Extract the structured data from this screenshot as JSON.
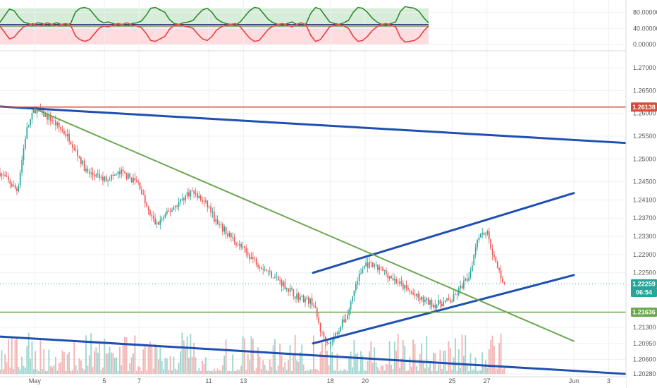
{
  "chart_data": [
    {
      "type": "line",
      "panel": "oscillator",
      "title": "",
      "ylim": [
        -5,
        100
      ],
      "y_ticks": [
        {
          "label": "80.00000",
          "value": 80
        },
        {
          "label": "40.00000",
          "value": 40
        },
        {
          "label": "0.00000",
          "value": 0
        }
      ],
      "series": [
        {
          "color": "#2e8b2e",
          "role": "upper",
          "values": [
            55,
            72,
            88,
            84,
            68,
            56,
            52,
            48,
            54,
            52,
            46,
            50,
            54,
            50,
            48,
            52,
            80,
            90,
            92,
            88,
            74,
            60,
            54,
            56,
            52,
            48,
            50,
            46,
            52,
            54,
            58,
            72,
            90,
            92,
            86,
            80,
            62,
            52,
            50,
            54,
            56,
            60,
            74,
            86,
            90,
            80,
            64,
            56,
            52,
            50,
            48,
            56,
            70,
            84,
            92,
            90,
            76,
            62,
            54,
            50,
            48,
            52,
            56,
            50,
            46,
            52,
            78,
            92,
            88,
            72,
            56,
            52,
            50,
            54,
            60,
            80,
            92,
            90,
            80,
            66,
            56,
            50,
            48,
            52,
            56,
            82,
            94,
            92,
            90,
            82,
            66,
            54
          ]
        },
        {
          "color": "#e84040",
          "role": "lower",
          "values": [
            45,
            30,
            14,
            18,
            32,
            44,
            48,
            52,
            46,
            48,
            54,
            50,
            46,
            50,
            52,
            48,
            22,
            12,
            8,
            12,
            26,
            40,
            46,
            44,
            48,
            52,
            50,
            54,
            48,
            46,
            42,
            28,
            10,
            8,
            14,
            20,
            38,
            48,
            50,
            46,
            44,
            40,
            26,
            14,
            10,
            20,
            36,
            44,
            48,
            50,
            52,
            44,
            30,
            16,
            8,
            10,
            24,
            38,
            46,
            50,
            52,
            48,
            44,
            50,
            54,
            48,
            22,
            8,
            12,
            28,
            44,
            48,
            50,
            46,
            40,
            20,
            8,
            10,
            20,
            34,
            44,
            50,
            52,
            48,
            44,
            18,
            6,
            8,
            10,
            18,
            34,
            46
          ]
        }
      ],
      "reference_lines": [
        {
          "value": 50,
          "color": "#1a237e"
        },
        {
          "value": 46,
          "color": "#2e7d32"
        }
      ],
      "bands": [
        {
          "from": 50,
          "to": 90,
          "color": "#c8e6c9"
        },
        {
          "from": 0,
          "to": 50,
          "color": "#ffcdd2"
        }
      ]
    },
    {
      "type": "candlestick",
      "panel": "price",
      "title": "",
      "ylim": [
        1.2025,
        1.2725
      ],
      "y_ticks": [
        {
          "label": "1.27000",
          "value": 1.27
        },
        {
          "label": "1.26500",
          "value": 1.265
        },
        {
          "label": "1.26000",
          "value": 1.26
        },
        {
          "label": "1.25500",
          "value": 1.255
        },
        {
          "label": "1.25000",
          "value": 1.25
        },
        {
          "label": "1.24500",
          "value": 1.245
        },
        {
          "label": "1.24100",
          "value": 1.241
        },
        {
          "label": "1.23700",
          "value": 1.237
        },
        {
          "label": "1.23300",
          "value": 1.233
        },
        {
          "label": "1.22900",
          "value": 1.229
        },
        {
          "label": "1.22500",
          "value": 1.225
        },
        {
          "label": "1.21300",
          "value": 1.213
        },
        {
          "label": "1.20950",
          "value": 1.2095
        },
        {
          "label": "1.20600",
          "value": 1.206
        },
        {
          "label": "1.20280",
          "value": 1.2028
        }
      ],
      "x_labels": [
        "May",
        "5",
        "7",
        "11",
        "13",
        "18",
        "20",
        "25",
        "27",
        "Jun",
        "3"
      ],
      "x_range": [
        "Apr 29",
        "Jun 4"
      ],
      "x_label_dates": [
        "May 1",
        "May 5",
        "May 7",
        "May 11",
        "May 13",
        "May 18",
        "May 20",
        "May 25",
        "May 27",
        "Jun 1",
        "Jun 3"
      ],
      "price_path": [
        [
          "Apr 29",
          1.247
        ],
        [
          "Apr 30",
          1.243
        ],
        [
          "Apr 30",
          1.256
        ],
        [
          "May 1",
          1.261
        ],
        [
          "May 2",
          1.2585
        ],
        [
          "May 3",
          1.2545
        ],
        [
          "May 4",
          1.247
        ],
        [
          "May 5",
          1.2455
        ],
        [
          "May 6",
          1.247
        ],
        [
          "May 7",
          1.2445
        ],
        [
          "May 7",
          1.2385
        ],
        [
          "May 8",
          1.2355
        ],
        [
          "May 9",
          1.2395
        ],
        [
          "May 10",
          1.243
        ],
        [
          "May 11",
          1.2395
        ],
        [
          "May 11",
          1.2355
        ],
        [
          "May 12",
          1.234
        ],
        [
          "May 13",
          1.23
        ],
        [
          "May 14",
          1.2265
        ],
        [
          "May 15",
          1.2235
        ],
        [
          "May 16",
          1.22
        ],
        [
          "May 17",
          1.2185
        ],
        [
          "May 17",
          1.2115
        ],
        [
          "May 18",
          1.2095
        ],
        [
          "May 19",
          1.216
        ],
        [
          "May 19",
          1.223
        ],
        [
          "May 20",
          1.227
        ],
        [
          "May 21",
          1.2255
        ],
        [
          "May 22",
          1.2225
        ],
        [
          "May 23",
          1.2195
        ],
        [
          "May 24",
          1.218
        ],
        [
          "May 25",
          1.219
        ],
        [
          "May 26",
          1.2245
        ],
        [
          "May 26",
          1.2335
        ],
        [
          "May 27",
          1.234
        ],
        [
          "May 27",
          1.227
        ],
        [
          "May 28",
          1.2226
        ]
      ],
      "drawings": [
        {
          "kind": "trendline",
          "color": "#1f4fb0",
          "points": [
            [
              "Apr 29",
              1.2615
            ],
            [
              "Jun 4",
              1.2535
            ]
          ]
        },
        {
          "kind": "trendline",
          "color": "#1f4fb0",
          "points": [
            [
              "Apr 29",
              1.211
            ],
            [
              "Jun 4",
              1.2028
            ]
          ]
        },
        {
          "kind": "trendline",
          "color": "#1f4fb0",
          "points": [
            [
              "May 17",
              1.2095
            ],
            [
              "Jun 1",
              1.2245
            ]
          ]
        },
        {
          "kind": "trendline",
          "color": "#1f4fb0",
          "points": [
            [
              "May 17",
              1.225
            ],
            [
              "Jun 1",
              1.2425
            ]
          ]
        },
        {
          "kind": "trendline",
          "color": "#6aa84f",
          "points": [
            [
              "May 1",
              1.261
            ],
            [
              "Jun 1",
              1.21
            ]
          ]
        },
        {
          "kind": "horizontal",
          "color": "#d84b3a",
          "value": 1.26138
        },
        {
          "kind": "horizontal",
          "color": "#6aa84f",
          "value": 1.21636
        },
        {
          "kind": "horizontal-dotted",
          "color": "#26a69a",
          "value": 1.22259
        }
      ],
      "price_tags": [
        {
          "label": "1.26138",
          "value": 1.26138,
          "color": "#d84b3a"
        },
        {
          "label": "1.22259",
          "value": 1.22259,
          "color": "#26a69a"
        },
        {
          "label": "06:54",
          "value": 1.2207,
          "color": "#26a69a"
        },
        {
          "label": "1.21636",
          "value": 1.21636,
          "color": "#6aa84f"
        }
      ],
      "volume": {
        "colors": {
          "up": "#8fcfc7",
          "down": "#f0a8a8"
        }
      }
    }
  ]
}
